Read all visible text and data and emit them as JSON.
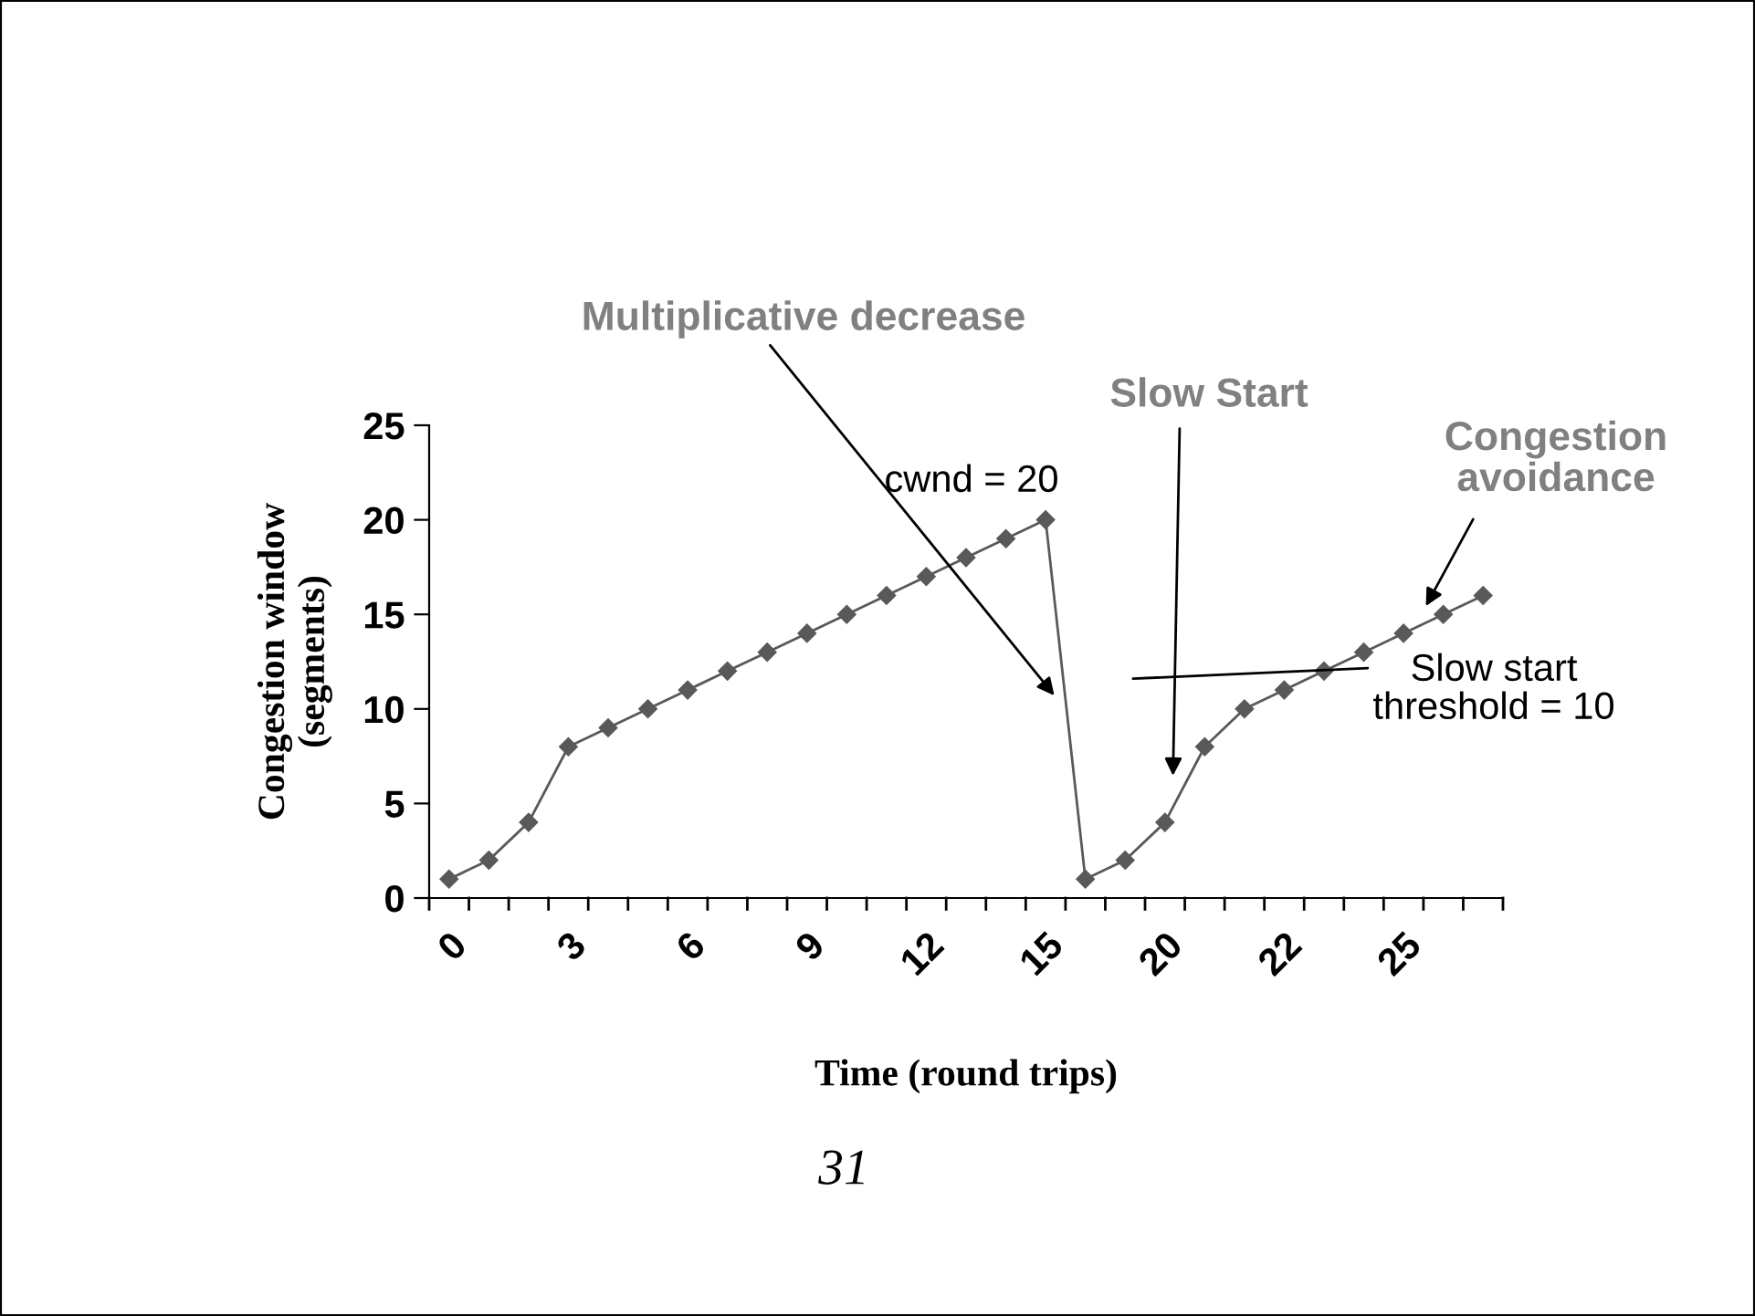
{
  "chart_data": {
    "type": "line",
    "xlabel": "Time (round trips)",
    "ylabel": "Congestion window\n(segments)",
    "categories": [
      "0",
      null,
      null,
      "3",
      null,
      null,
      "6",
      null,
      null,
      "9",
      null,
      null,
      "12",
      null,
      null,
      "15",
      null,
      null,
      "20",
      null,
      null,
      "22",
      null,
      null,
      "25",
      null,
      null
    ],
    "series": [
      {
        "color": "#595959",
        "values": [
          1,
          2,
          4,
          8,
          9,
          10,
          11,
          12,
          13,
          14,
          15,
          16,
          17,
          18,
          19,
          20,
          1,
          2,
          4,
          8,
          10,
          11,
          12,
          13,
          14,
          15,
          16
        ]
      }
    ],
    "ylim": [
      0,
      25
    ],
    "yticks": [
      0,
      5,
      10,
      15,
      20,
      25
    ],
    "marker": "diamond",
    "line_style": "solid",
    "grid": false,
    "legend": false,
    "annotations": [
      "Multiplicative decrease",
      "cwnd = 20",
      "Slow Start",
      "Congestion\navoidance",
      "Slow start\nthreshold = 10",
      "31"
    ]
  }
}
